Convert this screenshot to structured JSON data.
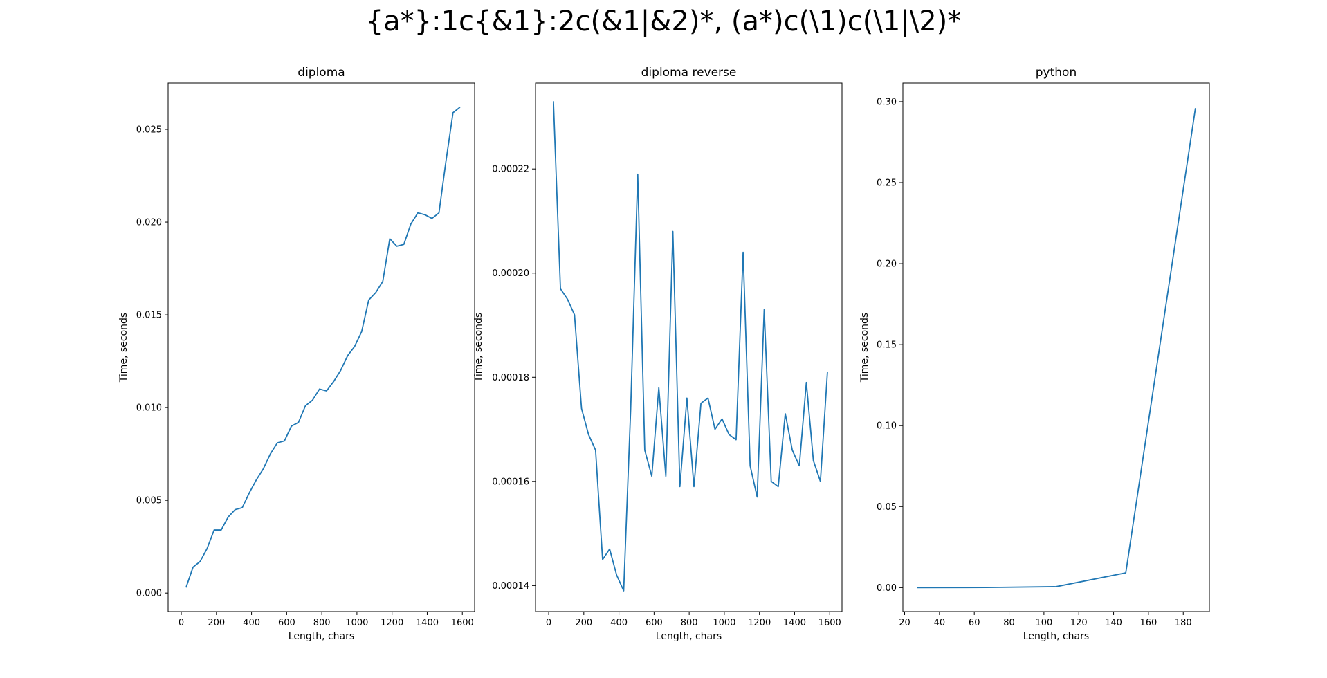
{
  "figure": {
    "suptitle": "{a*}:1c{&1}:2c(&1|&2)*, (a*)c(\\1)c(\\1|\\2)*",
    "line_color": "#1f77b4"
  },
  "chart_data": [
    {
      "type": "line",
      "title": "diploma",
      "xlabel": "Length, chars",
      "ylabel": "Time, seconds",
      "xlim": [
        -75,
        1670
      ],
      "ylim": [
        -0.001,
        0.0275
      ],
      "xticks": [
        0,
        200,
        400,
        600,
        800,
        1000,
        1200,
        1400,
        1600
      ],
      "xtick_labels": [
        "0",
        "200",
        "400",
        "600",
        "800",
        "1000",
        "1200",
        "1400",
        "1600"
      ],
      "yticks": [
        0.0,
        0.005,
        0.01,
        0.015,
        0.02,
        0.025
      ],
      "ytick_labels": [
        "0.000",
        "0.005",
        "0.010",
        "0.015",
        "0.020",
        "0.025"
      ],
      "series": [
        {
          "x": [
            27,
            67,
            107,
            147,
            187,
            227,
            267,
            307,
            347,
            387,
            427,
            467,
            507,
            547,
            587,
            627,
            667,
            707,
            747,
            787,
            827,
            867,
            907,
            947,
            987,
            1027,
            1067,
            1107,
            1147,
            1187,
            1227,
            1267,
            1307,
            1347,
            1387,
            1427,
            1467,
            1507,
            1547,
            1587
          ],
          "y": [
            0.0003,
            0.0014,
            0.0017,
            0.0024,
            0.0034,
            0.0034,
            0.0041,
            0.0045,
            0.0046,
            0.0054,
            0.0061,
            0.0067,
            0.0075,
            0.0081,
            0.0082,
            0.009,
            0.0092,
            0.0101,
            0.0104,
            0.011,
            0.0109,
            0.0114,
            0.012,
            0.0128,
            0.0133,
            0.0141,
            0.0158,
            0.0162,
            0.0168,
            0.0191,
            0.0187,
            0.0188,
            0.0199,
            0.0205,
            0.0204,
            0.0202,
            0.0205,
            0.0233,
            0.0259,
            0.0262
          ]
        }
      ]
    },
    {
      "type": "line",
      "title": "diploma reverse",
      "xlabel": "Length, chars",
      "ylabel": "Time, seconds",
      "xlim": [
        -75,
        1670
      ],
      "ylim": [
        0.000135,
        0.0002365
      ],
      "xticks": [
        0,
        200,
        400,
        600,
        800,
        1000,
        1200,
        1400,
        1600
      ],
      "xtick_labels": [
        "0",
        "200",
        "400",
        "600",
        "800",
        "1000",
        "1200",
        "1400",
        "1600"
      ],
      "yticks": [
        0.00014,
        0.00016,
        0.00018,
        0.0002,
        0.00022
      ],
      "ytick_labels": [
        "0.00014",
        "0.00016",
        "0.00018",
        "0.00020",
        "0.00022"
      ],
      "series": [
        {
          "x": [
            27,
            67,
            107,
            147,
            187,
            227,
            267,
            307,
            347,
            387,
            427,
            467,
            507,
            547,
            587,
            627,
            667,
            707,
            747,
            787,
            827,
            867,
            907,
            947,
            987,
            1027,
            1067,
            1107,
            1147,
            1187,
            1227,
            1267,
            1307,
            1347,
            1387,
            1427,
            1467,
            1507,
            1547,
            1587
          ],
          "y": [
            0.000233,
            0.000197,
            0.000195,
            0.000192,
            0.000174,
            0.000169,
            0.000166,
            0.000145,
            0.000147,
            0.000142,
            0.000139,
            0.000174,
            0.000219,
            0.000166,
            0.000161,
            0.000178,
            0.000161,
            0.000208,
            0.000159,
            0.000176,
            0.000159,
            0.000175,
            0.000176,
            0.00017,
            0.000172,
            0.000169,
            0.000168,
            0.000204,
            0.000163,
            0.000157,
            0.000193,
            0.00016,
            0.000159,
            0.000173,
            0.000166,
            0.000163,
            0.000179,
            0.000164,
            0.00016,
            0.000181
          ]
        }
      ]
    },
    {
      "type": "line",
      "title": "python",
      "xlabel": "Length, chars",
      "ylabel": "Time, seconds",
      "xlim": [
        19,
        195
      ],
      "ylim": [
        -0.0148,
        0.3115
      ],
      "xticks": [
        20,
        40,
        60,
        80,
        100,
        120,
        140,
        160,
        180
      ],
      "xtick_labels": [
        "20",
        "40",
        "60",
        "80",
        "100",
        "120",
        "140",
        "160",
        "180"
      ],
      "yticks": [
        0.0,
        0.05,
        0.1,
        0.15,
        0.2,
        0.25,
        0.3
      ],
      "ytick_labels": [
        "0.00",
        "0.05",
        "0.10",
        "0.15",
        "0.20",
        "0.25",
        "0.30"
      ],
      "series": [
        {
          "x": [
            27,
            67,
            107,
            147,
            187
          ],
          "y": [
            0.0,
            0.0001,
            0.0006,
            0.0091,
            0.296
          ]
        }
      ]
    }
  ]
}
